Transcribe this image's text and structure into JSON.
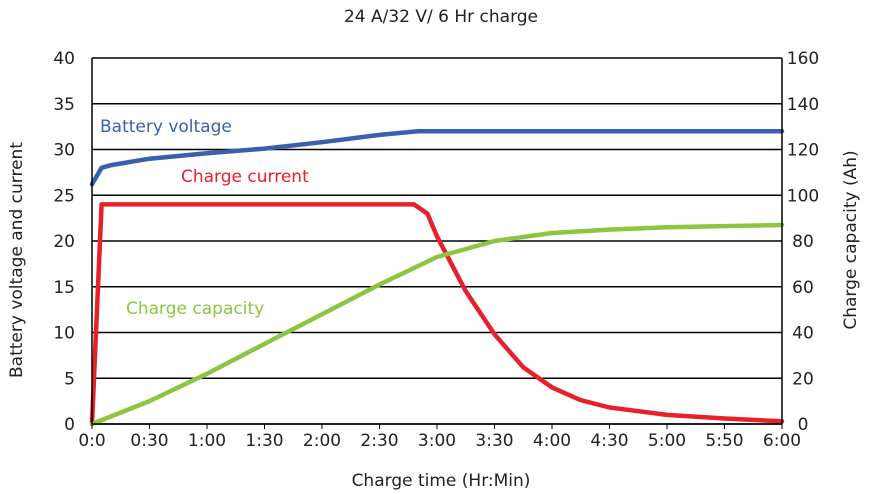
{
  "chart_data": {
    "type": "line",
    "title": "24 A/32 V/ 6 Hr charge",
    "xlabel": "Charge time (Hr:Min)",
    "ylabel_left": "Battery voltage and current",
    "ylabel_right": "Charge capacity (Ah)",
    "x_ticks": [
      "0:0",
      "0:30",
      "1:00",
      "1:30",
      "2:00",
      "2:30",
      "3:00",
      "3:30",
      "4:00",
      "4:30",
      "5:00",
      "5:50",
      "6:00"
    ],
    "y_left_ticks": [
      "0",
      "5",
      "10",
      "15",
      "20",
      "25",
      "30",
      "35",
      "40"
    ],
    "y_right_ticks": [
      "0",
      "20",
      "40",
      "60",
      "80",
      "100",
      "120",
      "140",
      "160"
    ],
    "ylim_left": [
      0,
      40
    ],
    "ylim_right": [
      0,
      160
    ],
    "x_unit": "minutes",
    "xlim": [
      0,
      360
    ],
    "grid": "horizontal",
    "series": [
      {
        "name": "Battery voltage",
        "axis": "left",
        "color": "#3a5fad",
        "x": [
          0,
          5,
          10,
          30,
          60,
          90,
          120,
          150,
          170,
          180,
          210,
          240,
          300,
          360
        ],
        "values": [
          26.2,
          28,
          28.3,
          29,
          29.6,
          30.1,
          30.8,
          31.6,
          32,
          32,
          32,
          32,
          32,
          32
        ]
      },
      {
        "name": "Charge current",
        "axis": "left",
        "color": "#e8202a",
        "x": [
          0,
          5,
          10,
          30,
          60,
          90,
          120,
          150,
          168,
          175,
          180,
          195,
          210,
          225,
          240,
          255,
          270,
          300,
          330,
          360
        ],
        "values": [
          0,
          24,
          24,
          24,
          24,
          24,
          24,
          24,
          24,
          23,
          20.5,
          14.5,
          9.8,
          6.2,
          4,
          2.6,
          1.8,
          1.0,
          0.6,
          0.3
        ]
      },
      {
        "name": "Charge capacity",
        "axis": "right",
        "color": "#8cc540",
        "x": [
          0,
          30,
          60,
          90,
          120,
          150,
          180,
          210,
          240,
          270,
          300,
          330,
          360
        ],
        "values": [
          0,
          10,
          22,
          35,
          48,
          61,
          73,
          80,
          83.5,
          85,
          86,
          86.5,
          87
        ]
      }
    ],
    "series_labels": [
      {
        "text": "Battery voltage",
        "color": "#3a5fad"
      },
      {
        "text": "Charge current",
        "color": "#e8202a"
      },
      {
        "text": "Charge capacity",
        "color": "#8cc540"
      }
    ]
  }
}
